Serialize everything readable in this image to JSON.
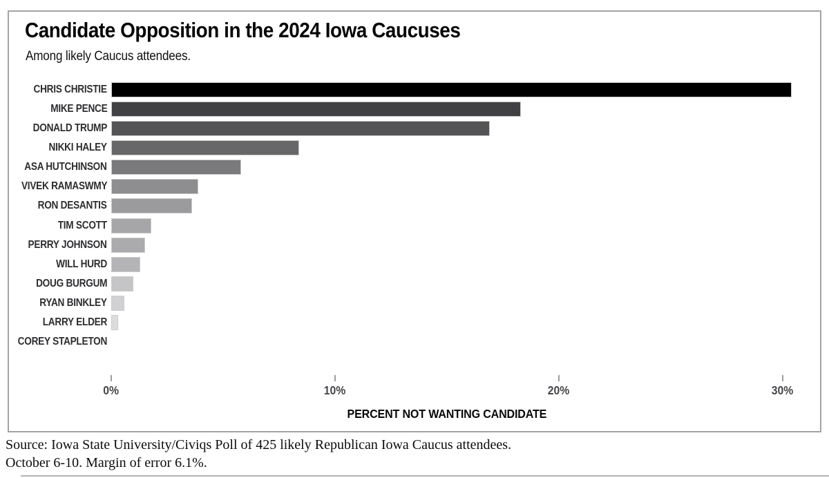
{
  "chart_data": {
    "type": "bar",
    "orientation": "horizontal",
    "title": "Candidate Opposition in the 2024 Iowa Caucuses",
    "subtitle": "Among likely Caucus attendees.",
    "xlabel": "PERCENT NOT WANTING CANDIDATE",
    "ylabel": "",
    "xlim": [
      0,
      30.5
    ],
    "grid": false,
    "legend": null,
    "categories": [
      "CHRIS CHRISTIE",
      "MIKE PENCE",
      "DONALD TRUMP",
      "NIKKI HALEY",
      "ASA HUTCHINSON",
      "VIVEK RAMASWMY",
      "RON DESANTIS",
      "TIM SCOTT",
      "PERRY JOHNSON",
      "WILL HURD",
      "DOUG BURGUM",
      "RYAN BINKLEY",
      "LARRY ELDER",
      "COREY STAPLETON"
    ],
    "values": [
      30.4,
      18.3,
      16.9,
      8.4,
      5.8,
      3.9,
      3.6,
      1.8,
      1.5,
      1.3,
      1.0,
      0.6,
      0.3,
      0
    ],
    "bar_colors": [
      "#000000",
      "#414144",
      "#545457",
      "#67676a",
      "#7a7a7d",
      "#8e8e91",
      "#9b9b9e",
      "#a6a6a9",
      "#ababae",
      "#b4b4b7",
      "#c5c5c7",
      "#d1d1d3",
      "#dcdcde",
      "#e6e6e8"
    ],
    "x_ticks": [
      {
        "value": 0,
        "label": "0%"
      },
      {
        "value": 10,
        "label": "10%"
      },
      {
        "value": 20,
        "label": "20%"
      },
      {
        "value": 30,
        "label": "30%"
      }
    ]
  },
  "source": {
    "line1": "Source: Iowa State University/Civiqs Poll of 425 likely Republican Iowa Caucus attendees.",
    "line2": "October 6-10. Margin of error 6.1%."
  },
  "colors": {
    "frame_border": "#a3a3a3",
    "bar_edge": "#cccccc",
    "tick": "#9c9c9c",
    "tick_label_text": "#46464b",
    "label_text": "#2e2e31",
    "bottom_rule": "#b3b3b3"
  }
}
